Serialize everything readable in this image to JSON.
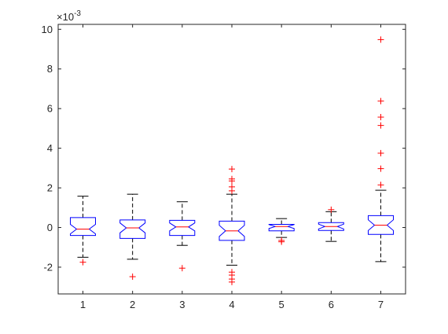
{
  "chart_data": {
    "type": "boxplot",
    "notched": true,
    "scale_exponent_label": "×10",
    "scale_exponent_power": "-3",
    "ylim": [
      -3.35,
      10.25
    ],
    "yticks": [
      -2,
      0,
      2,
      4,
      6,
      8,
      10
    ],
    "ytick_labels": [
      "-2",
      "0",
      "2",
      "4",
      "6",
      "8",
      "10"
    ],
    "categories": [
      "1",
      "2",
      "3",
      "4",
      "5",
      "6",
      "7"
    ],
    "grid": false,
    "colors": {
      "box": "#0000ff",
      "median": "#ff0000",
      "outlier": "#ff0000",
      "whisker": "#000000",
      "axis": "#262626"
    },
    "boxes": [
      {
        "x": 1,
        "whisker_low": -1.5,
        "q1": -0.4,
        "median": -0.08,
        "q3": 0.5,
        "whisker_high": 1.58,
        "notch_low": -0.32,
        "notch_high": 0.16,
        "outliers": [
          -1.75
        ]
      },
      {
        "x": 2,
        "whisker_low": -1.6,
        "q1": -0.55,
        "median": -0.02,
        "q3": 0.38,
        "whisker_high": 1.68,
        "notch_low": -0.27,
        "notch_high": 0.23,
        "outliers": [
          -2.48
        ]
      },
      {
        "x": 3,
        "whisker_low": -0.9,
        "q1": -0.4,
        "median": 0.03,
        "q3": 0.36,
        "whisker_high": 1.3,
        "notch_low": -0.17,
        "notch_high": 0.23,
        "outliers": [
          -2.05
        ]
      },
      {
        "x": 4,
        "whisker_low": -1.9,
        "q1": -0.65,
        "median": -0.17,
        "q3": 0.32,
        "whisker_high": 1.68,
        "notch_low": -0.45,
        "notch_high": 0.11,
        "outliers": [
          2.95,
          2.45,
          2.35,
          2.05,
          1.85,
          -2.25,
          -2.4,
          -2.6,
          -2.75
        ]
      },
      {
        "x": 5,
        "whisker_low": -0.5,
        "q1": -0.17,
        "median": 0.05,
        "q3": 0.16,
        "whisker_high": 0.45,
        "notch_low": -0.05,
        "notch_high": 0.15,
        "outliers": [
          -0.65,
          -0.72
        ]
      },
      {
        "x": 6,
        "whisker_low": -0.7,
        "q1": -0.15,
        "median": 0.05,
        "q3": 0.25,
        "whisker_high": 0.8,
        "notch_low": -0.07,
        "notch_high": 0.17,
        "outliers": [
          0.9
        ]
      },
      {
        "x": 7,
        "whisker_low": -1.72,
        "q1": -0.35,
        "median": 0.12,
        "q3": 0.6,
        "whisker_high": 1.88,
        "notch_low": -0.15,
        "notch_high": 0.39,
        "outliers": [
          2.15,
          2.97,
          3.75,
          5.15,
          5.57,
          6.38,
          9.48
        ]
      }
    ]
  }
}
